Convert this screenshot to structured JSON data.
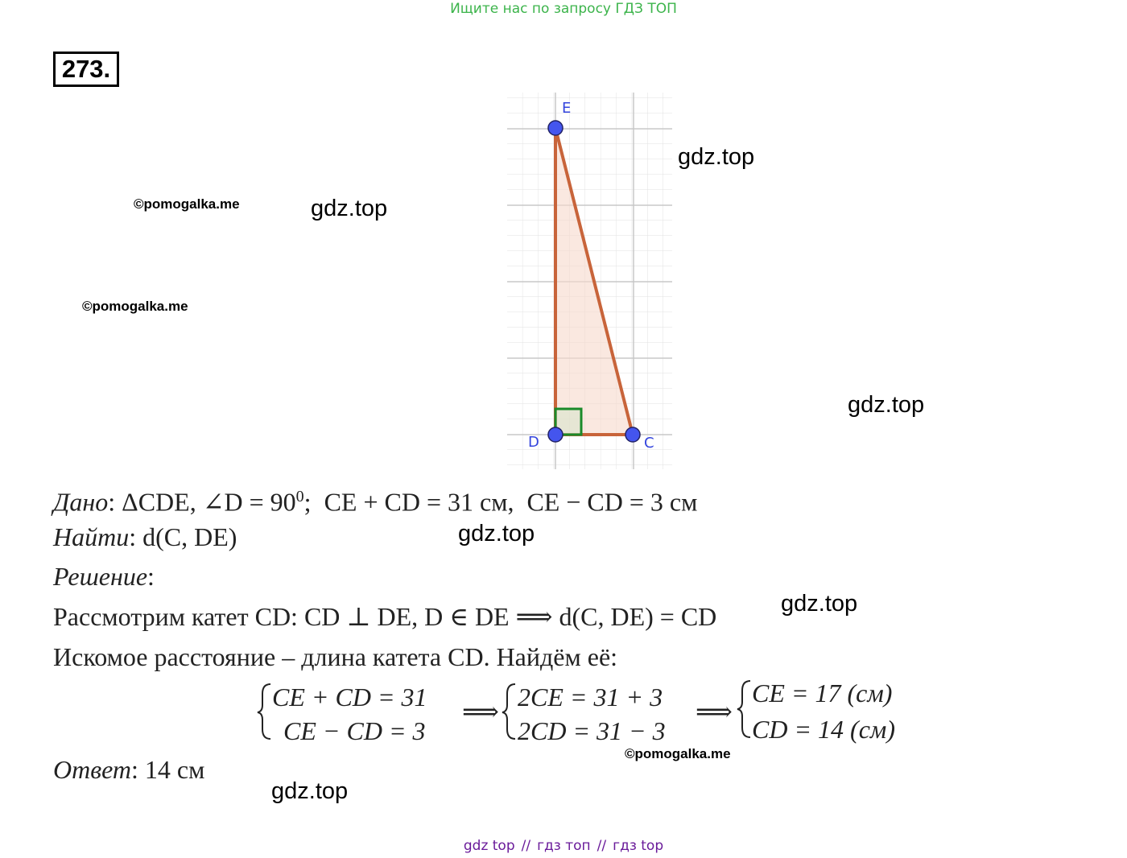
{
  "header": {
    "search_hint": "Ищите нас по запросу ГДЗ ТОП"
  },
  "problem": {
    "number": "273."
  },
  "diagram": {
    "labels": [
      "E",
      "D",
      "C"
    ]
  },
  "solution": {
    "given": {
      "label": "Дано",
      "text": ": ΔCDE, ∠D = 90",
      "sup": "0",
      "rest": ";  CE + CD = 31 см,  CE − CD = 3 см"
    },
    "find": {
      "label": "Найти",
      "text": ": d(C, DE)"
    },
    "solution_label": {
      "label": "Решение",
      "text": ":"
    },
    "lines": [
      "Рассмотрим катет CD: CD ⊥ DE, D ∈ DE ⟹ d(C, DE) = CD",
      "Искомое расстояние – длина катета CD. Найдём её:"
    ],
    "system": {
      "left": [
        "CE + CD = 31",
        "CE − CD = 3"
      ],
      "arrows": [
        "⟹",
        "⟹"
      ],
      "middle": [
        "2CE = 31 + 3",
        "2CD = 31 − 3"
      ],
      "right": [
        "CE = 17 (см)",
        "CD = 14 (см)"
      ]
    },
    "answer": {
      "label": "Ответ",
      "text": ": 14 см"
    }
  },
  "watermarks": {
    "gdz": [
      "gdz.top",
      "gdz.top",
      "gdz.top",
      "gdz.top",
      "gdz.top",
      "gdz.top"
    ],
    "pomogalka": [
      "©pomogalka.me",
      "©pomogalka.me",
      "©pomogalka.me"
    ]
  },
  "footer": {
    "links": [
      "gdz top",
      "гдз топ",
      "гдз top"
    ],
    "separators": [
      "//",
      "//"
    ]
  }
}
